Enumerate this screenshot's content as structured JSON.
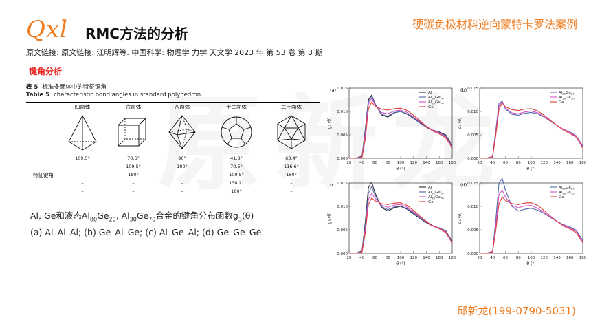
{
  "header": {
    "logo_text": "Qxl",
    "title": "RMC方法的分析",
    "topic": "硬碳负极材料逆向蒙特卡罗法案例"
  },
  "reference": "原文链接:  原文链接:  江明辉等. 中国科学: 物理学 力学 天文学 2023 年 第 53 卷 第 3 期",
  "section_title": "键角分析",
  "table": {
    "caption_cn_label": "表 5",
    "caption_cn": "标准多面体中的特征键角",
    "caption_en_label": "Table 5",
    "caption_en": "characteristic bond angles in standard polyhedron",
    "columns": [
      "四面体",
      "六面体",
      "八面体",
      "十二面体",
      "二十面体"
    ],
    "row_label": "特征键角",
    "values": [
      [
        "109.5°",
        "–",
        "–",
        "–",
        "–"
      ],
      [
        "70.5°",
        "109.5°",
        "180°",
        "–",
        "–"
      ],
      [
        "90°",
        "180°",
        "–",
        "–",
        "–"
      ],
      [
        "41.8°",
        "70.5°",
        "109.5°",
        "138.2°",
        "180°"
      ],
      [
        "63.4°",
        "116.6°",
        "180°",
        "–",
        "–"
      ]
    ]
  },
  "caption": {
    "line1_prefix": "Al, Ge和液态Al",
    "sub1": "80",
    "mid1": "Ge",
    "sub2": "20",
    "mid2": ", Al",
    "sub3": "30",
    "mid3": "Ge",
    "sub4": "70",
    "line1_suffix": "合金的键角分布函数g",
    "sub5": "3",
    "line1_end": "(θ)",
    "line2": "(a) Al–Al–Al;  (b) Ge–Al–Ge;  (c) Al–Ge–Al;  (d) Ge–Ge–Ge"
  },
  "contact": "邱新龙(199-0790-5031)",
  "watermark": "原新龙",
  "colors": {
    "Al": "#2b2b33",
    "Al80Ge20": "#5566aa",
    "Al30Ge70": "#d054c8",
    "Ge": "#dd3b3b"
  },
  "chart_data": [
    {
      "type": "line",
      "panel": "(a)",
      "xlabel": "θ (°)",
      "ylabel": "g₃ (θ)",
      "xlim": [
        20,
        180
      ],
      "ylim": [
        0,
        0.015
      ],
      "xticks": [
        20,
        40,
        60,
        80,
        100,
        120,
        140,
        160,
        180
      ],
      "yticks": [
        0.0,
        0.005,
        0.01,
        0.015
      ],
      "ytick_labels": [
        "0.000",
        "0.005",
        "0.010",
        "0.015"
      ],
      "legend": "top-right",
      "series": [
        {
          "name": "Al",
          "color_key": "Al",
          "x": [
            20,
            30,
            40,
            45,
            50,
            55,
            60,
            70,
            80,
            90,
            100,
            110,
            120,
            130,
            140,
            150,
            160,
            170,
            180
          ],
          "y": [
            0,
            0,
            0.0005,
            0.006,
            0.0125,
            0.0135,
            0.0118,
            0.0093,
            0.0088,
            0.0097,
            0.01,
            0.0095,
            0.0086,
            0.0076,
            0.0067,
            0.006,
            0.0056,
            0.005,
            0.0028
          ]
        },
        {
          "name": "Al80Ge20",
          "color_key": "Al80Ge20",
          "x": [
            20,
            30,
            40,
            45,
            50,
            55,
            60,
            70,
            80,
            90,
            100,
            110,
            120,
            130,
            140,
            150,
            160,
            170,
            180
          ],
          "y": [
            0,
            0,
            0.0004,
            0.0055,
            0.012,
            0.0133,
            0.0117,
            0.0094,
            0.009,
            0.0098,
            0.01,
            0.0094,
            0.0085,
            0.0075,
            0.0066,
            0.0059,
            0.0055,
            0.0048,
            0.0026
          ]
        },
        {
          "name": "Al30Ge70",
          "color_key": "Al30Ge70",
          "x": [
            20,
            30,
            40,
            45,
            50,
            55,
            60,
            70,
            80,
            90,
            100,
            110,
            120,
            130,
            140,
            150,
            160,
            170,
            180
          ],
          "y": [
            0,
            0,
            0.0003,
            0.005,
            0.0115,
            0.0128,
            0.0115,
            0.0098,
            0.0095,
            0.0101,
            0.0103,
            0.0098,
            0.0088,
            0.0078,
            0.0068,
            0.006,
            0.0054,
            0.0046,
            0.0024
          ]
        },
        {
          "name": "Ge",
          "color_key": "Ge",
          "x": [
            20,
            30,
            40,
            45,
            50,
            55,
            60,
            70,
            80,
            90,
            100,
            110,
            120,
            130,
            140,
            150,
            160,
            170,
            180
          ],
          "y": [
            0,
            0,
            0.0002,
            0.004,
            0.0105,
            0.012,
            0.0112,
            0.0105,
            0.0103,
            0.0106,
            0.0107,
            0.0102,
            0.0092,
            0.008,
            0.0068,
            0.0058,
            0.0052,
            0.0044,
            0.0022
          ]
        }
      ]
    },
    {
      "type": "line",
      "panel": "(b)",
      "xlabel": "θ (°)",
      "ylabel": "g₃ (θ)",
      "xlim": [
        20,
        180
      ],
      "ylim": [
        0,
        0.015
      ],
      "xticks": [
        20,
        40,
        60,
        80,
        100,
        120,
        140,
        160,
        180
      ],
      "yticks": [
        0.0,
        0.005,
        0.01,
        0.015
      ],
      "ytick_labels": [
        "0.000",
        "0.005",
        "0.010",
        "0.015"
      ],
      "legend": "top-right",
      "series": [
        {
          "name": "Al80Ge20",
          "color_key": "Al80Ge20",
          "x": [
            20,
            30,
            40,
            45,
            50,
            55,
            60,
            70,
            80,
            90,
            100,
            110,
            120,
            130,
            140,
            150,
            160,
            170,
            180
          ],
          "y": [
            0,
            0,
            0.0004,
            0.006,
            0.0118,
            0.0122,
            0.0105,
            0.0094,
            0.0092,
            0.0096,
            0.0098,
            0.0095,
            0.0088,
            0.0079,
            0.007,
            0.0062,
            0.0056,
            0.0048,
            0.0026
          ]
        },
        {
          "name": "Al30Ge70",
          "color_key": "Al30Ge70",
          "x": [
            20,
            30,
            40,
            45,
            50,
            55,
            60,
            70,
            80,
            90,
            100,
            110,
            120,
            130,
            140,
            150,
            160,
            170,
            180
          ],
          "y": [
            0,
            0,
            0.0004,
            0.0055,
            0.0112,
            0.012,
            0.0107,
            0.0097,
            0.0095,
            0.0099,
            0.0101,
            0.0097,
            0.0089,
            0.008,
            0.007,
            0.0062,
            0.0055,
            0.0047,
            0.0024
          ]
        },
        {
          "name": "Ge",
          "color_key": "Ge",
          "x": [
            20,
            30,
            40,
            45,
            50,
            55,
            60,
            70,
            80,
            90,
            100,
            110,
            120,
            130,
            140,
            150,
            160,
            170,
            180
          ],
          "y": [
            0,
            0,
            0.0003,
            0.0048,
            0.0105,
            0.0118,
            0.011,
            0.0104,
            0.0102,
            0.0105,
            0.0106,
            0.0101,
            0.0092,
            0.0081,
            0.007,
            0.006,
            0.0053,
            0.0045,
            0.0022
          ]
        }
      ]
    },
    {
      "type": "line",
      "panel": "(c)",
      "xlabel": "θ (°)",
      "ylabel": "g₃ (θ)",
      "xlim": [
        20,
        180
      ],
      "ylim": [
        0,
        0.015
      ],
      "xticks": [
        20,
        40,
        60,
        80,
        100,
        120,
        140,
        160,
        180
      ],
      "yticks": [
        0.0,
        0.005,
        0.01,
        0.015
      ],
      "ytick_labels": [
        "0.000",
        "0.005",
        "0.010",
        "0.015"
      ],
      "legend": "top-right",
      "series": [
        {
          "name": "Al",
          "color_key": "Al",
          "x": [
            20,
            30,
            40,
            45,
            50,
            55,
            60,
            70,
            80,
            90,
            100,
            110,
            120,
            130,
            140,
            150,
            160,
            170,
            180
          ],
          "y": [
            0,
            0,
            0.0005,
            0.0065,
            0.014,
            0.0152,
            0.013,
            0.0098,
            0.009,
            0.0097,
            0.01,
            0.0094,
            0.0084,
            0.0074,
            0.0065,
            0.0058,
            0.0054,
            0.0048,
            0.0026
          ]
        },
        {
          "name": "Al80Ge20",
          "color_key": "Al80Ge20",
          "x": [
            20,
            30,
            40,
            45,
            50,
            55,
            60,
            70,
            80,
            90,
            100,
            110,
            120,
            130,
            140,
            150,
            160,
            170,
            180
          ],
          "y": [
            0,
            0,
            0.0004,
            0.0058,
            0.0128,
            0.0142,
            0.0125,
            0.01,
            0.0093,
            0.0099,
            0.0101,
            0.0095,
            0.0086,
            0.0075,
            0.0066,
            0.0059,
            0.0054,
            0.0047,
            0.0025
          ]
        },
        {
          "name": "Al30Ge70",
          "color_key": "Al30Ge70",
          "x": [
            20,
            30,
            40,
            45,
            50,
            55,
            60,
            70,
            80,
            90,
            100,
            110,
            120,
            130,
            140,
            150,
            160,
            170,
            180
          ],
          "y": [
            0,
            0,
            0.0003,
            0.005,
            0.0115,
            0.0128,
            0.0118,
            0.0103,
            0.0098,
            0.0103,
            0.0104,
            0.0098,
            0.0088,
            0.0077,
            0.0067,
            0.0059,
            0.0053,
            0.0046,
            0.0023
          ]
        },
        {
          "name": "Ge",
          "color_key": "Ge",
          "x": [
            20,
            30,
            40,
            45,
            50,
            55,
            60,
            70,
            80,
            90,
            100,
            110,
            120,
            130,
            140,
            150,
            160,
            170,
            180
          ],
          "y": [
            0,
            0,
            0.0002,
            0.0042,
            0.0104,
            0.0118,
            0.0112,
            0.0106,
            0.0104,
            0.0107,
            0.0108,
            0.0102,
            0.0091,
            0.0079,
            0.0068,
            0.0058,
            0.0052,
            0.0044,
            0.0022
          ]
        }
      ]
    },
    {
      "type": "line",
      "panel": "(d)",
      "xlabel": "θ (°)",
      "ylabel": "g₃ (θ)",
      "xlim": [
        20,
        180
      ],
      "ylim": [
        0,
        0.015
      ],
      "xticks": [
        20,
        40,
        60,
        80,
        100,
        120,
        140,
        160,
        180
      ],
      "yticks": [
        0.0,
        0.005,
        0.01,
        0.015
      ],
      "ytick_labels": [
        "0.000",
        "0.005",
        "0.010",
        "0.015"
      ],
      "legend": "top-right",
      "series": [
        {
          "name": "Al80Ge20",
          "color_key": "Al80Ge20",
          "x": [
            20,
            30,
            40,
            45,
            50,
            55,
            60,
            70,
            80,
            90,
            100,
            110,
            120,
            130,
            140,
            150,
            160,
            170,
            180
          ],
          "y": [
            0,
            0,
            0.0004,
            0.007,
            0.015,
            0.016,
            0.0135,
            0.01,
            0.009,
            0.0094,
            0.0096,
            0.0092,
            0.0085,
            0.0076,
            0.0068,
            0.0061,
            0.0056,
            0.0049,
            0.0027
          ]
        },
        {
          "name": "Al30Ge70",
          "color_key": "Al30Ge70",
          "x": [
            20,
            30,
            40,
            45,
            50,
            55,
            60,
            70,
            80,
            90,
            100,
            110,
            120,
            130,
            140,
            150,
            160,
            170,
            180
          ],
          "y": [
            0,
            0,
            0.0004,
            0.0058,
            0.0125,
            0.0135,
            0.012,
            0.0102,
            0.0097,
            0.0101,
            0.0102,
            0.0096,
            0.0087,
            0.0077,
            0.0068,
            0.006,
            0.0054,
            0.0047,
            0.0024
          ]
        },
        {
          "name": "Ge",
          "color_key": "Ge",
          "x": [
            20,
            30,
            40,
            45,
            50,
            55,
            60,
            70,
            80,
            90,
            100,
            110,
            120,
            130,
            140,
            150,
            160,
            170,
            180
          ],
          "y": [
            0,
            0,
            0.0003,
            0.0048,
            0.0106,
            0.012,
            0.0113,
            0.0106,
            0.0104,
            0.0107,
            0.0108,
            0.0102,
            0.0091,
            0.0079,
            0.0068,
            0.0058,
            0.0052,
            0.0044,
            0.0022
          ]
        }
      ]
    }
  ]
}
